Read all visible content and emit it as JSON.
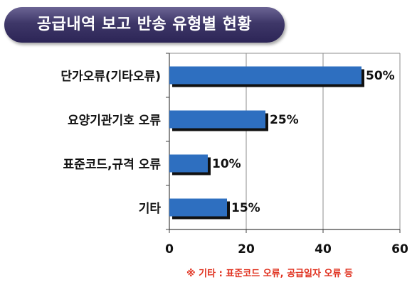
{
  "title": "공급내역 보고 반송 유형별 현황",
  "footnote": "※ 기타 : 표준코드 오류, 공급일자 오류 등",
  "chart_data": {
    "type": "bar",
    "orientation": "horizontal",
    "categories": [
      "단가오류(기타오류)",
      "요양기관기호 오류",
      "표준코드,규격 오류",
      "기타"
    ],
    "values": [
      50,
      25,
      10,
      15
    ],
    "data_labels": [
      "50%",
      "25%",
      "10%",
      "15%"
    ],
    "xlim": [
      0,
      60
    ],
    "xticks": [
      0,
      20,
      40,
      60
    ],
    "grid": true,
    "legend": "none",
    "bar_color": "#2e6fc0",
    "bar_shadow_color": "#111111"
  }
}
